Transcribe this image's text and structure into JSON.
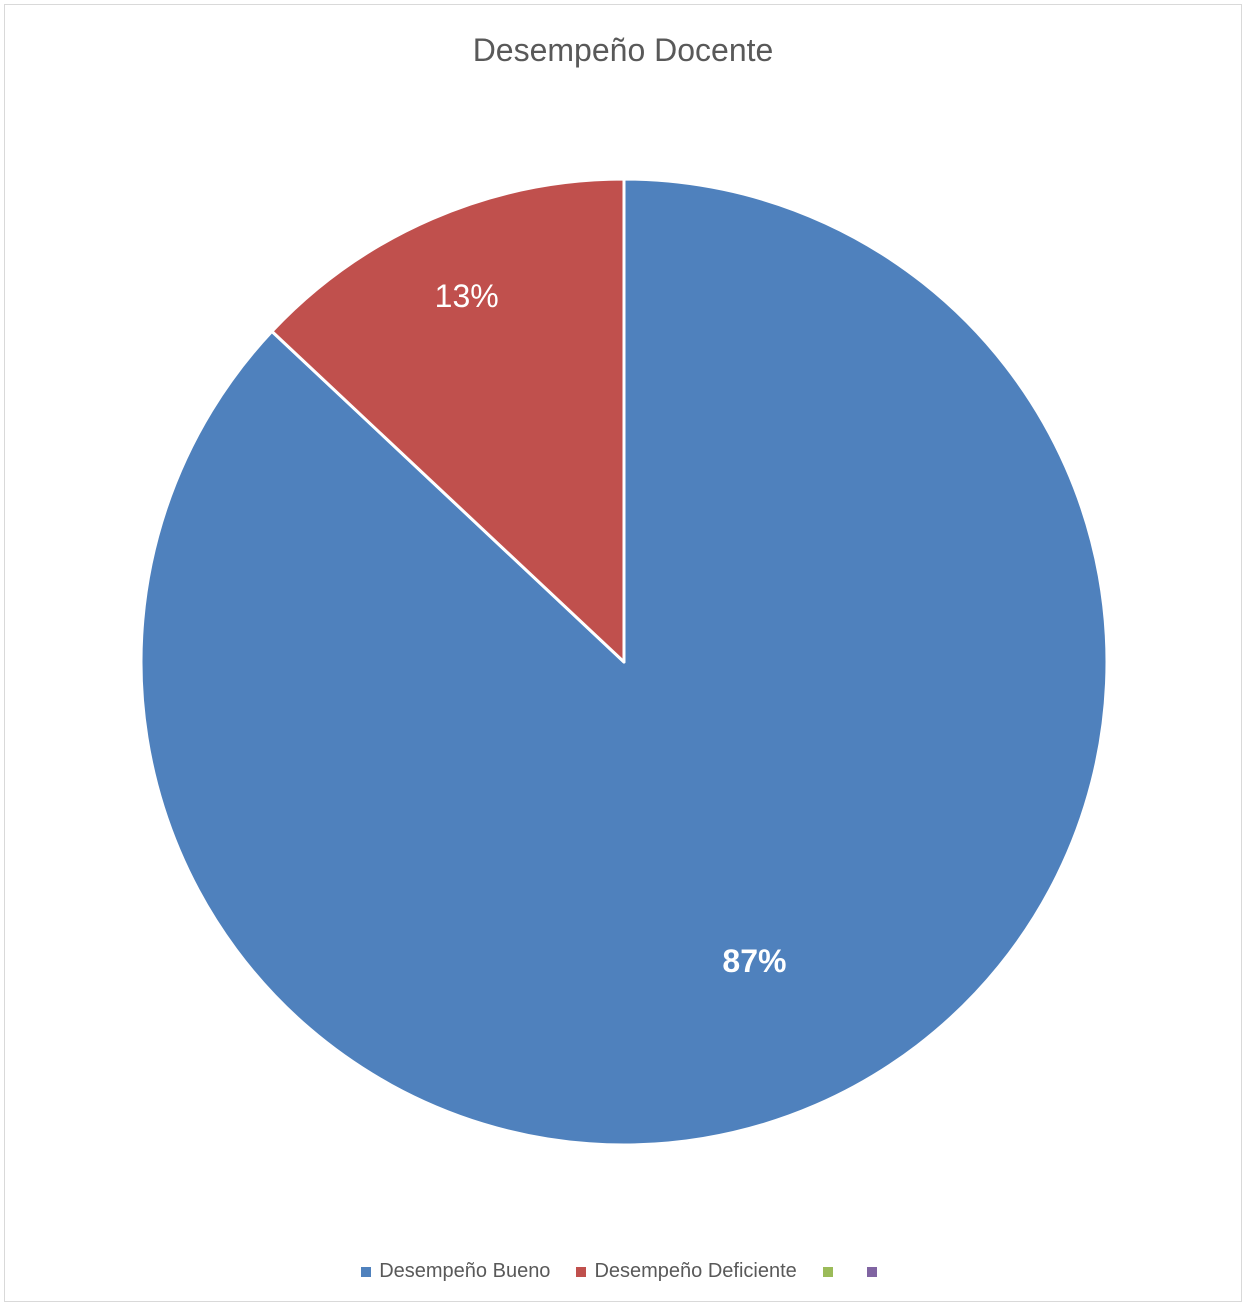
{
  "chart_data": {
    "type": "pie",
    "title": "Desempeño Docente",
    "categories": [
      "Desempeño Bueno",
      "Desempeño Deficiente",
      "",
      ""
    ],
    "values": [
      87,
      13,
      0,
      0
    ],
    "data_labels": [
      "87%",
      "13%",
      "",
      ""
    ],
    "colors": [
      "#4f81bd",
      "#c0504d",
      "#9bbb59",
      "#8064a2"
    ],
    "legend_position": "bottom",
    "start_angle": "top",
    "direction": "clockwise"
  }
}
